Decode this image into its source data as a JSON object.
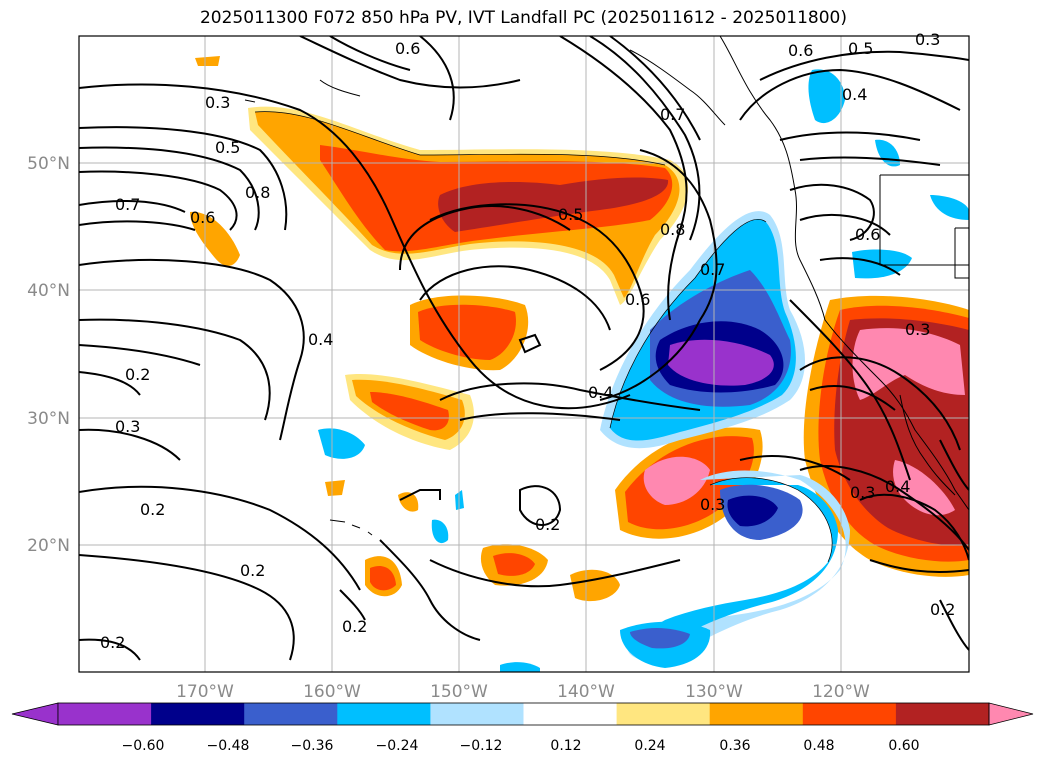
{
  "title": "2025011300 F072 850 hPa PV, IVT Landfall PC (2025011612 - 2025011800)",
  "map": {
    "lon_range": [
      -180,
      -110
    ],
    "lat_range": [
      10,
      60
    ],
    "lat_labels": [
      "50°N",
      "40°N",
      "30°N",
      "20°N"
    ],
    "lon_labels": [
      "170°W",
      "160°W",
      "150°W",
      "140°W",
      "130°W",
      "120°W"
    ],
    "contour_labels": [
      "0.3",
      "0.5",
      "0.8",
      "0.7",
      "0.6",
      "0.4",
      "0.2",
      "0.3",
      "0.2",
      "0.2",
      "0.2",
      "0.2",
      "0.5",
      "0.8",
      "0.7",
      "0.4",
      "0.2",
      "0.3",
      "0.6",
      "0.5",
      "0.4",
      "0.3",
      "0.6",
      "0.6",
      "0.7",
      "0.3",
      "0.3",
      "0.4",
      "0.2",
      "0.6"
    ]
  },
  "colorbar": {
    "ticks": [
      "−0.60",
      "−0.48",
      "−0.36",
      "−0.24",
      "−0.12",
      "0.12",
      "0.24",
      "0.36",
      "0.48",
      "0.60"
    ],
    "colors": [
      "#9932cc",
      "#00008b",
      "#3a5fcd",
      "#00bfff",
      "#b0e2ff",
      "#ffffff",
      "#ffe680",
      "#ffa500",
      "#ff4500",
      "#b22222",
      "#ff88b0",
      "#ff88b0"
    ]
  }
}
